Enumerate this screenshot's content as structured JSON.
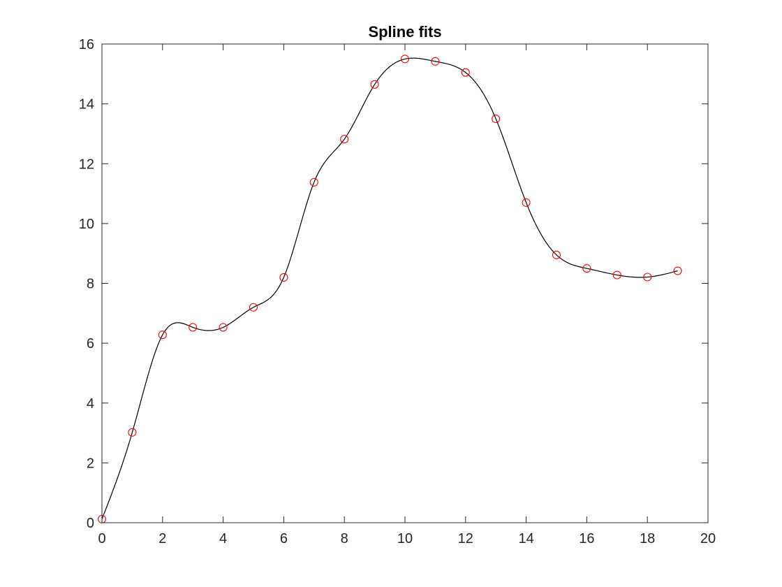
{
  "chart_data": {
    "type": "line",
    "title": "Spline fits",
    "xlabel": "",
    "ylabel": "",
    "xlim": [
      0,
      20
    ],
    "ylim": [
      0,
      16
    ],
    "xticks": [
      0,
      2,
      4,
      6,
      8,
      10,
      12,
      14,
      16,
      18,
      20
    ],
    "yticks": [
      0,
      2,
      4,
      6,
      8,
      10,
      12,
      14,
      16
    ],
    "grid": false,
    "box": true,
    "series": [
      {
        "kind": "markers",
        "marker": "circle",
        "color": "#ff0000",
        "x": [
          0,
          1,
          2,
          3,
          4,
          5,
          6,
          7,
          8,
          9,
          10,
          11,
          12,
          13,
          14,
          15,
          16,
          17,
          18,
          19
        ],
        "y": [
          0.12,
          3.02,
          6.28,
          6.53,
          6.53,
          7.2,
          8.2,
          11.38,
          12.82,
          14.65,
          15.5,
          15.42,
          15.05,
          13.5,
          10.7,
          8.95,
          8.5,
          8.28,
          8.21,
          8.42
        ]
      },
      {
        "kind": "spline",
        "color": "#000000",
        "x": [
          0,
          1,
          2,
          3,
          4,
          5,
          6,
          7,
          8,
          9,
          10,
          11,
          12,
          13,
          14,
          15,
          16,
          17,
          18,
          19
        ],
        "y": [
          0.12,
          3.02,
          6.28,
          6.53,
          6.53,
          7.2,
          8.2,
          11.38,
          12.82,
          14.65,
          15.5,
          15.42,
          15.05,
          13.5,
          10.7,
          8.95,
          8.5,
          8.28,
          8.21,
          8.42
        ]
      }
    ]
  }
}
